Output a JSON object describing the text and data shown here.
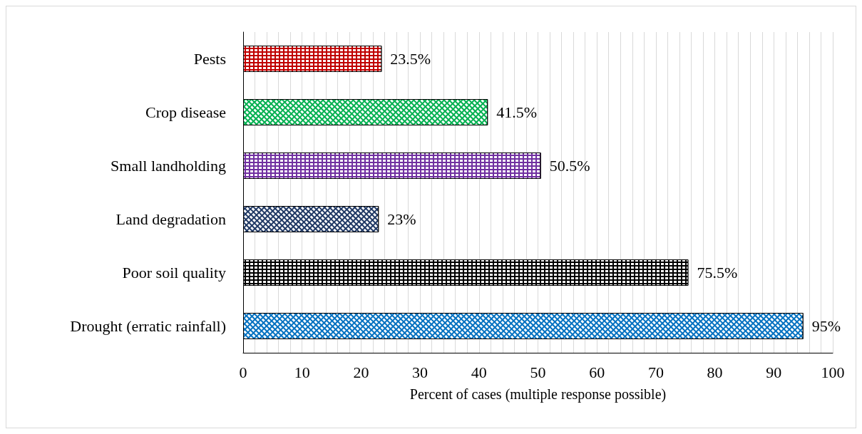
{
  "chart_data": {
    "type": "bar",
    "orientation": "horizontal",
    "xlabel": "Percent of cases (multiple response possible)",
    "categories": [
      "Pests",
      "Crop disease",
      "Small landholding",
      "Land degradation",
      "Poor soil quality",
      "Drought (erratic rainfall)"
    ],
    "values": [
      23.5,
      41.5,
      50.5,
      23,
      75.5,
      95
    ],
    "colors": [
      "#c00000",
      "#00b050",
      "#7030a0",
      "#1f3864",
      "#000000",
      "#0070c0"
    ],
    "value_labels": [
      "23.5%",
      "41.5%",
      "50.5%",
      "23%",
      "75.5%",
      "95%"
    ],
    "xlim": [
      0,
      100
    ],
    "xticks": [
      0,
      {
        "value": 2,
        "label": null
      },
      {
        "value": 4,
        "label": null
      },
      {
        "value": 6,
        "label": null
      },
      {
        "value": 8,
        "label": null
      },
      10,
      {
        "value": 12,
        "label": null
      },
      {
        "value": 14,
        "label": null
      },
      {
        "value": 16,
        "label": null
      },
      {
        "value": 18,
        "label": null
      },
      20,
      {
        "value": 22,
        "label": null
      },
      {
        "value": 24,
        "label": null
      },
      {
        "value": 26,
        "label": null
      },
      {
        "value": 28,
        "label": null
      },
      30,
      {
        "value": 32,
        "label": null
      },
      {
        "value": 34,
        "label": null
      },
      {
        "value": 36,
        "label": null
      },
      {
        "value": 38,
        "label": null
      },
      40,
      {
        "value": 42,
        "label": null
      },
      {
        "value": 44,
        "label": null
      },
      {
        "value": 46,
        "label": null
      },
      {
        "value": 48,
        "label": null
      },
      50,
      {
        "value": 52,
        "label": null
      },
      {
        "value": 54,
        "label": null
      },
      {
        "value": 56,
        "label": null
      },
      {
        "value": 58,
        "label": null
      },
      60,
      {
        "value": 62,
        "label": null
      },
      {
        "value": 64,
        "label": null
      },
      {
        "value": 66,
        "label": null
      },
      {
        "value": 68,
        "label": null
      },
      70,
      {
        "value": 72,
        "label": null
      },
      {
        "value": 74,
        "label": null
      },
      {
        "value": 76,
        "label": null
      },
      {
        "value": 78,
        "label": null
      },
      80,
      {
        "value": 82,
        "label": null
      },
      {
        "value": 84,
        "label": null
      },
      {
        "value": 86,
        "label": null
      },
      {
        "value": 88,
        "label": null
      },
      90,
      {
        "value": 92,
        "label": null
      },
      {
        "value": 94,
        "label": null
      },
      {
        "value": 96,
        "label": null
      },
      {
        "value": 98,
        "label": null
      },
      100
    ],
    "grid": "x"
  }
}
